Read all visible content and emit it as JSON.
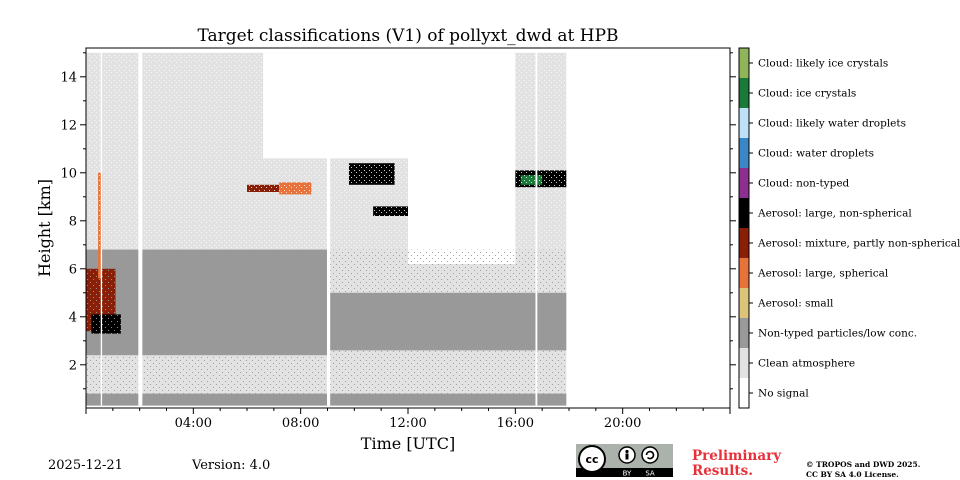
{
  "chart_data": {
    "type": "heatmap",
    "title": "Target classifications (V1) of pollyxt_dwd at HPB",
    "xlabel": "Time [UTC]",
    "ylabel": "Height [km]",
    "xlim_hours": [
      0,
      24
    ],
    "ylim_km": [
      0.2,
      15.2
    ],
    "x_ticks": [
      {
        "value": 4,
        "label": "04:00"
      },
      {
        "value": 8,
        "label": "08:00"
      },
      {
        "value": 12,
        "label": "12:00"
      },
      {
        "value": 16,
        "label": "16:00"
      },
      {
        "value": 20,
        "label": "20:00"
      }
    ],
    "y_ticks": [
      {
        "value": 2,
        "label": "2"
      },
      {
        "value": 4,
        "label": "4"
      },
      {
        "value": 6,
        "label": "6"
      },
      {
        "value": 8,
        "label": "8"
      },
      {
        "value": 10,
        "label": "10"
      },
      {
        "value": 12,
        "label": "12"
      },
      {
        "value": 14,
        "label": "14"
      }
    ],
    "data_end_hour": 17.9,
    "legend": [
      {
        "label": "Cloud: likely ice crystals",
        "color": "#8fb45a"
      },
      {
        "label": "Cloud: ice crystals",
        "color": "#1b7a3a"
      },
      {
        "label": "Cloud: likely water droplets",
        "color": "#bfe1f7"
      },
      {
        "label": "Cloud: water droplets",
        "color": "#3b86c5"
      },
      {
        "label": "Cloud: non-typed",
        "color": "#8c2f8f"
      },
      {
        "label": "Aerosol: large, non-spherical",
        "color": "#000000"
      },
      {
        "label": "Aerosol: mixture, partly non-spherical",
        "color": "#8a1f08"
      },
      {
        "label": "Aerosol: large, spherical",
        "color": "#e8733a"
      },
      {
        "label": "Aerosol: small",
        "color": "#dcc57a"
      },
      {
        "label": "Non-typed particles/low conc.",
        "color": "#999999"
      },
      {
        "label": "Clean atmosphere",
        "color": "#e2e2e2"
      },
      {
        "label": "No signal",
        "color": "#ffffff"
      }
    ],
    "regions": [
      {
        "class": "Clean atmosphere",
        "t": [
          0,
          17.9
        ],
        "h": [
          0.3,
          15.0
        ]
      },
      {
        "class": "Non-typed particles/low conc.",
        "t": [
          0,
          9.0
        ],
        "h": [
          2.4,
          6.8
        ]
      },
      {
        "class": "Non-typed particles/low conc.",
        "t": [
          9.0,
          17.9
        ],
        "h": [
          2.6,
          5.0
        ]
      },
      {
        "class": "Non-typed particles/low conc.",
        "t": [
          0,
          17.9
        ],
        "h": [
          0.3,
          0.8
        ]
      },
      {
        "class": "No signal",
        "t": [
          6.6,
          16.0
        ],
        "h": [
          10.6,
          15.0
        ]
      },
      {
        "class": "No signal",
        "t": [
          12.0,
          16.0
        ],
        "h": [
          6.2,
          10.6
        ]
      },
      {
        "class": "Aerosol: mixture, partly non-spherical",
        "t": [
          0.0,
          1.1
        ],
        "h": [
          3.4,
          6.0
        ]
      },
      {
        "class": "Aerosol: large, non-spherical",
        "t": [
          0.2,
          1.3
        ],
        "h": [
          3.3,
          4.1
        ]
      },
      {
        "class": "Aerosol: large, spherical",
        "t": [
          0.45,
          0.6
        ],
        "h": [
          5.6,
          10.0
        ]
      },
      {
        "class": "Aerosol: large, non-spherical",
        "t": [
          16.0,
          17.9
        ],
        "h": [
          9.4,
          10.1
        ]
      },
      {
        "class": "Cloud: ice crystals",
        "t": [
          16.2,
          17.0
        ],
        "h": [
          9.5,
          9.9
        ]
      },
      {
        "class": "Aerosol: mixture, partly non-spherical",
        "t": [
          6.0,
          7.2
        ],
        "h": [
          9.2,
          9.5
        ]
      },
      {
        "class": "Aerosol: large, spherical",
        "t": [
          7.2,
          8.4
        ],
        "h": [
          9.1,
          9.6
        ]
      },
      {
        "class": "Aerosol: large, non-spherical",
        "t": [
          9.8,
          11.5
        ],
        "h": [
          9.5,
          10.4
        ]
      },
      {
        "class": "Aerosol: large, non-spherical",
        "t": [
          10.7,
          12.0
        ],
        "h": [
          8.2,
          8.6
        ]
      }
    ]
  },
  "footer": {
    "date": "2025-12-21",
    "version": "Version: 4.0",
    "preliminary_line1": "Preliminary",
    "preliminary_line2": "Results.",
    "copyright_line1": "© TROPOS and DWD 2025.",
    "copyright_line2": "CC BY SA 4.0 License.",
    "license_by": "BY",
    "license_sa": "SA"
  }
}
